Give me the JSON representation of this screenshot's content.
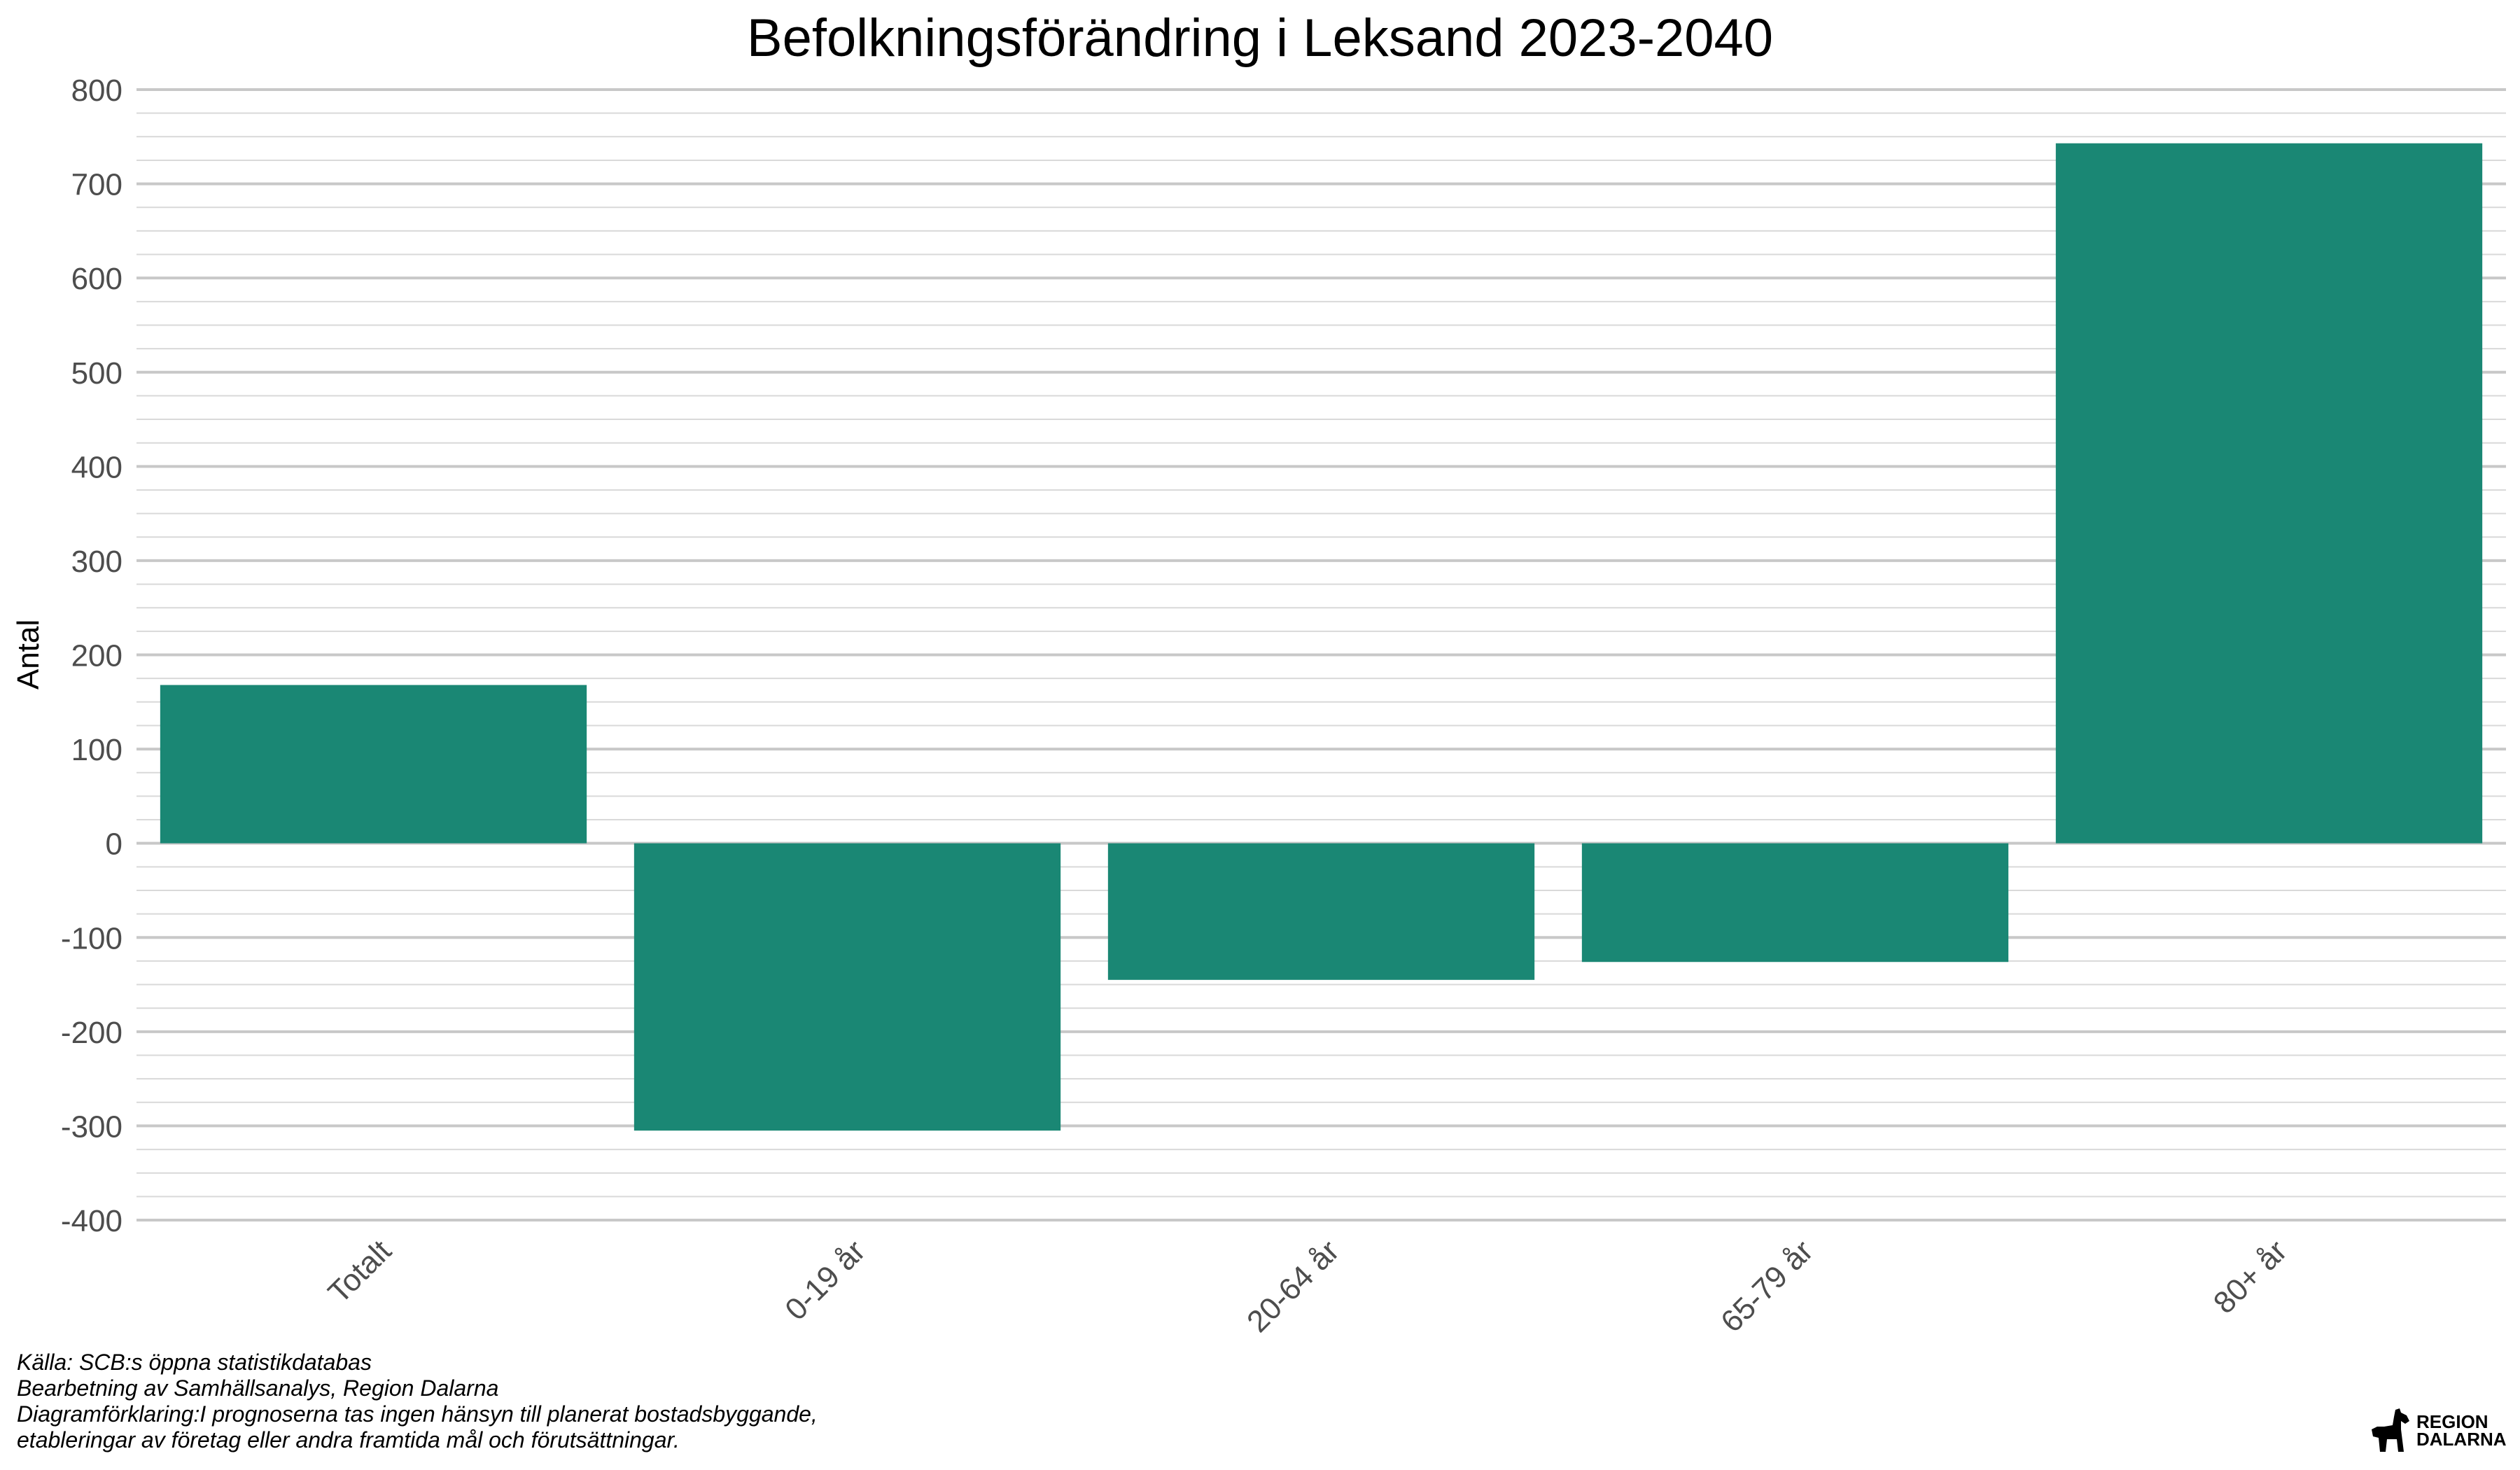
{
  "chart_data": {
    "type": "bar",
    "title": "Befolkningsförändring i Leksand 2023-2040",
    "xlabel": "",
    "ylabel": "Antal",
    "categories": [
      "Totalt",
      "0-19 år",
      "20-64 år",
      "65-79 år",
      "80+ år"
    ],
    "values": [
      168,
      -305,
      -145,
      -126,
      743
    ],
    "ylim": [
      -400,
      800
    ],
    "yticks": [
      800,
      700,
      600,
      500,
      400,
      300,
      200,
      100,
      0,
      -100,
      -200,
      -300,
      -400
    ],
    "bar_color": "#1a8774",
    "grid": true,
    "legend": "none"
  },
  "caption": {
    "line1": "Källa: SCB:s öppna statistikdatabas",
    "line2": "Bearbetning av Samhällsanalys, Region Dalarna",
    "line3": "Diagramförklaring:I prognoserna tas ingen hänsyn till planerat bostadsbyggande,",
    "line4": "etableringar av företag eller andra framtida mål och förutsättningar."
  },
  "logo": {
    "line1": "REGION",
    "line2": "DALARNA",
    "icon": "dala-horse-icon"
  }
}
